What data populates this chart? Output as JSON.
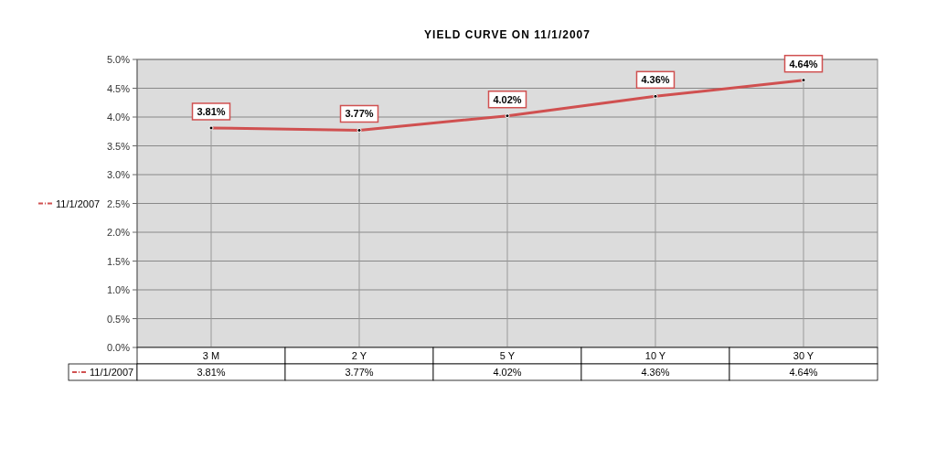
{
  "chart_data": {
    "type": "line",
    "title": "YIELD CURVE ON 11/1/2007",
    "categories": [
      "3 M",
      "2 Y",
      "5 Y",
      "10 Y",
      "30 Y"
    ],
    "series": [
      {
        "name": "11/1/2007",
        "color": "#d05050",
        "values": [
          3.81,
          3.77,
          4.02,
          4.36,
          4.64
        ],
        "value_labels": [
          "3.81%",
          "3.77%",
          "4.02%",
          "4.36%",
          "4.64%"
        ]
      }
    ],
    "ylim": [
      0,
      5
    ],
    "yticks": [
      {
        "value": 0,
        "label": "0.0%"
      },
      {
        "value": 0.5,
        "label": "0.5%"
      },
      {
        "value": 1,
        "label": "1.0%"
      },
      {
        "value": 1.5,
        "label": "1.5%"
      },
      {
        "value": 2,
        "label": "2.0%"
      },
      {
        "value": 2.5,
        "label": "2.5%"
      },
      {
        "value": 3,
        "label": "3.0%"
      },
      {
        "value": 3.5,
        "label": "3.5%"
      },
      {
        "value": 4,
        "label": "4.0%"
      },
      {
        "value": 4.5,
        "label": "4.5%"
      },
      {
        "value": 5,
        "label": "5.0%"
      }
    ],
    "grid": true,
    "legend": "left",
    "marker": "circle"
  }
}
